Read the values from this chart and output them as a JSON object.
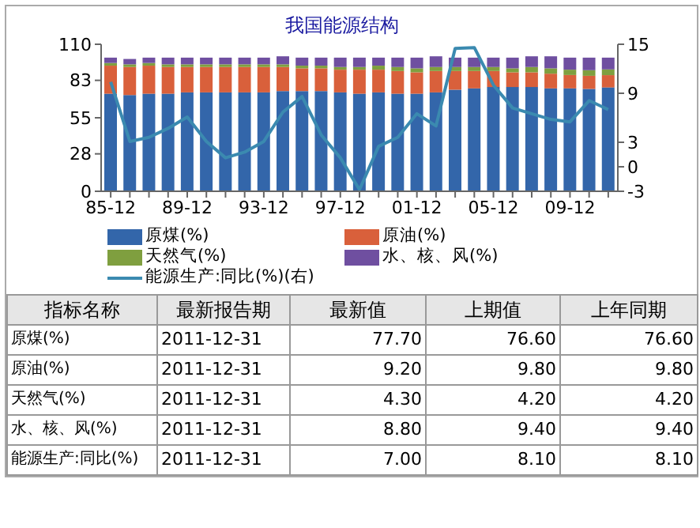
{
  "chart_data": [
    {
      "type": "bar",
      "title": "我国能源结构",
      "stacked": true,
      "categories": [
        "85-12",
        null,
        null,
        null,
        "89-12",
        null,
        null,
        null,
        "93-12",
        null,
        null,
        null,
        "97-12",
        null,
        null,
        null,
        "01-12",
        null,
        null,
        null,
        "05-12",
        null,
        null,
        null,
        "09-12",
        null,
        null
      ],
      "series": [
        {
          "name": "原煤(%)",
          "color": "#3366aa",
          "values": [
            73,
            72,
            73,
            73,
            74,
            74,
            74,
            74,
            74,
            75,
            75,
            75,
            74,
            73,
            74,
            73,
            73,
            74,
            76,
            77,
            78,
            78,
            78,
            77,
            77,
            76.6,
            77.7
          ]
        },
        {
          "name": "原油(%)",
          "color": "#d9603b",
          "values": [
            21,
            21,
            21,
            20,
            19,
            19,
            19,
            19,
            19,
            18,
            17,
            17,
            17,
            18,
            17,
            17,
            16,
            16,
            14,
            13,
            12,
            11,
            11,
            11,
            10,
            9.8,
            9.2
          ]
        },
        {
          "name": "天然气(%)",
          "color": "#7f9f3f",
          "values": [
            2,
            2,
            2,
            2,
            2,
            2,
            2,
            2,
            2,
            2,
            2,
            2,
            2,
            2,
            3,
            3,
            3,
            3,
            3,
            3,
            3,
            3,
            4,
            4,
            4,
            4.2,
            4.3
          ]
        },
        {
          "name": "水、核、风(%)",
          "color": "#6f4fa0",
          "values": [
            4,
            4,
            4,
            5,
            5,
            5,
            5,
            5,
            5,
            6,
            6,
            6,
            7,
            7,
            6,
            7,
            8,
            8,
            7,
            7,
            7,
            8,
            8,
            9,
            9,
            9.4,
            8.8
          ]
        },
        {
          "name": "能源生产:同比(%)(右)",
          "type": "line",
          "axis": "y2",
          "color": "#3b8ab0",
          "values": [
            10.4,
            3.1,
            3.6,
            4.7,
            6.1,
            3.1,
            1.1,
            1.8,
            3.1,
            6.7,
            8.6,
            3.9,
            1.1,
            -2.8,
            2.5,
            3.6,
            6.5,
            5.0,
            14.5,
            14.6,
            10.0,
            7.2,
            6.5,
            5.8,
            5.5,
            8.1,
            7.0
          ]
        }
      ],
      "ylim": [
        0,
        110
      ],
      "yticks": [
        0,
        28,
        55,
        83,
        110
      ],
      "y2lim": [
        -3,
        15
      ],
      "y2ticks": [
        -3,
        0,
        3,
        9,
        15
      ],
      "grid": false,
      "marker": "none",
      "line_style": "solid",
      "legend": "bottom"
    },
    {
      "type": "other",
      "annotations": [
        "指标名称",
        "最新报告期",
        "2011-12-31",
        "2011-12-31",
        "2011-12-31",
        "2011-12-31",
        "2011-12-31"
      ],
      "categories": [
        "原煤(%)",
        "原油(%)",
        "天然气(%)",
        "水、核、风(%)",
        "能源生产:同比(%)"
      ],
      "series": [
        {
          "name": "最新值",
          "values": [
            77.7,
            9.2,
            4.3,
            8.8,
            7.0
          ],
          "value_labels": [
            "77.70",
            "9.20",
            "4.30",
            "8.80",
            "7.00"
          ]
        },
        {
          "name": "上期值",
          "values": [
            76.6,
            9.8,
            4.2,
            9.4,
            8.1
          ],
          "value_labels": [
            "76.60",
            "9.80",
            "4.20",
            "9.40",
            "8.10"
          ]
        },
        {
          "name": "上年同期",
          "values": [
            76.6,
            9.8,
            4.2,
            9.4,
            8.1
          ],
          "value_labels": [
            "76.60",
            "9.80",
            "4.20",
            "9.40",
            "8.10"
          ]
        }
      ]
    }
  ]
}
